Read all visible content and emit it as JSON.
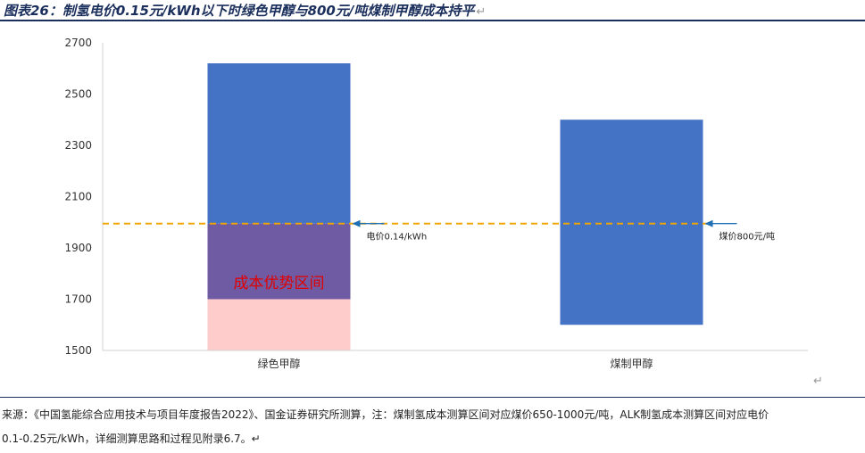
{
  "title": "图表26：制氢电价0.15元/kWh以下时绿色甲醇与800元/吨煤制甲醇成本持平",
  "return_glyph": "↵",
  "chart_data": {
    "type": "bar",
    "subtype": "floating-range",
    "categories": [
      "绿色甲醇",
      "煤制甲醇"
    ],
    "series": [
      {
        "name": "",
        "ranges": [
          [
            1500,
            2620
          ],
          [
            1600,
            2400
          ]
        ]
      }
    ],
    "segments_green": {
      "advantage_low": 1700,
      "reference": 1995
    },
    "reference_line": {
      "value": 1995,
      "style": "dashed",
      "color": "#f0a500"
    },
    "annotations": {
      "green": "电价0.14/kWh",
      "coal": "煤价800元/吨",
      "band": "成本优势区间"
    },
    "ylim": [
      1500,
      2700
    ],
    "yticks": [
      1500,
      1700,
      1900,
      2100,
      2300,
      2500,
      2700
    ],
    "grid": false,
    "xlabel": "",
    "ylabel": "",
    "colors": {
      "bar": "#4472c4",
      "overlap": "#6f5ba3",
      "advantage": "#ffcccc",
      "band_label": "#e00000",
      "arrow": "#1f6fb5",
      "axis": "#d0d0d0",
      "title": "#1b2f5c"
    }
  },
  "source_lines": [
    "来源：《中国氢能综合应用技术与项目年度报告2022》、国金证券研究所测算，注：煤制氢成本测算区间对应煤价650-1000元/吨，ALK制氢成本测算区间对应电价",
    "0.1-0.25元/kWh，详细测算思路和过程见附录6.7。↵"
  ]
}
